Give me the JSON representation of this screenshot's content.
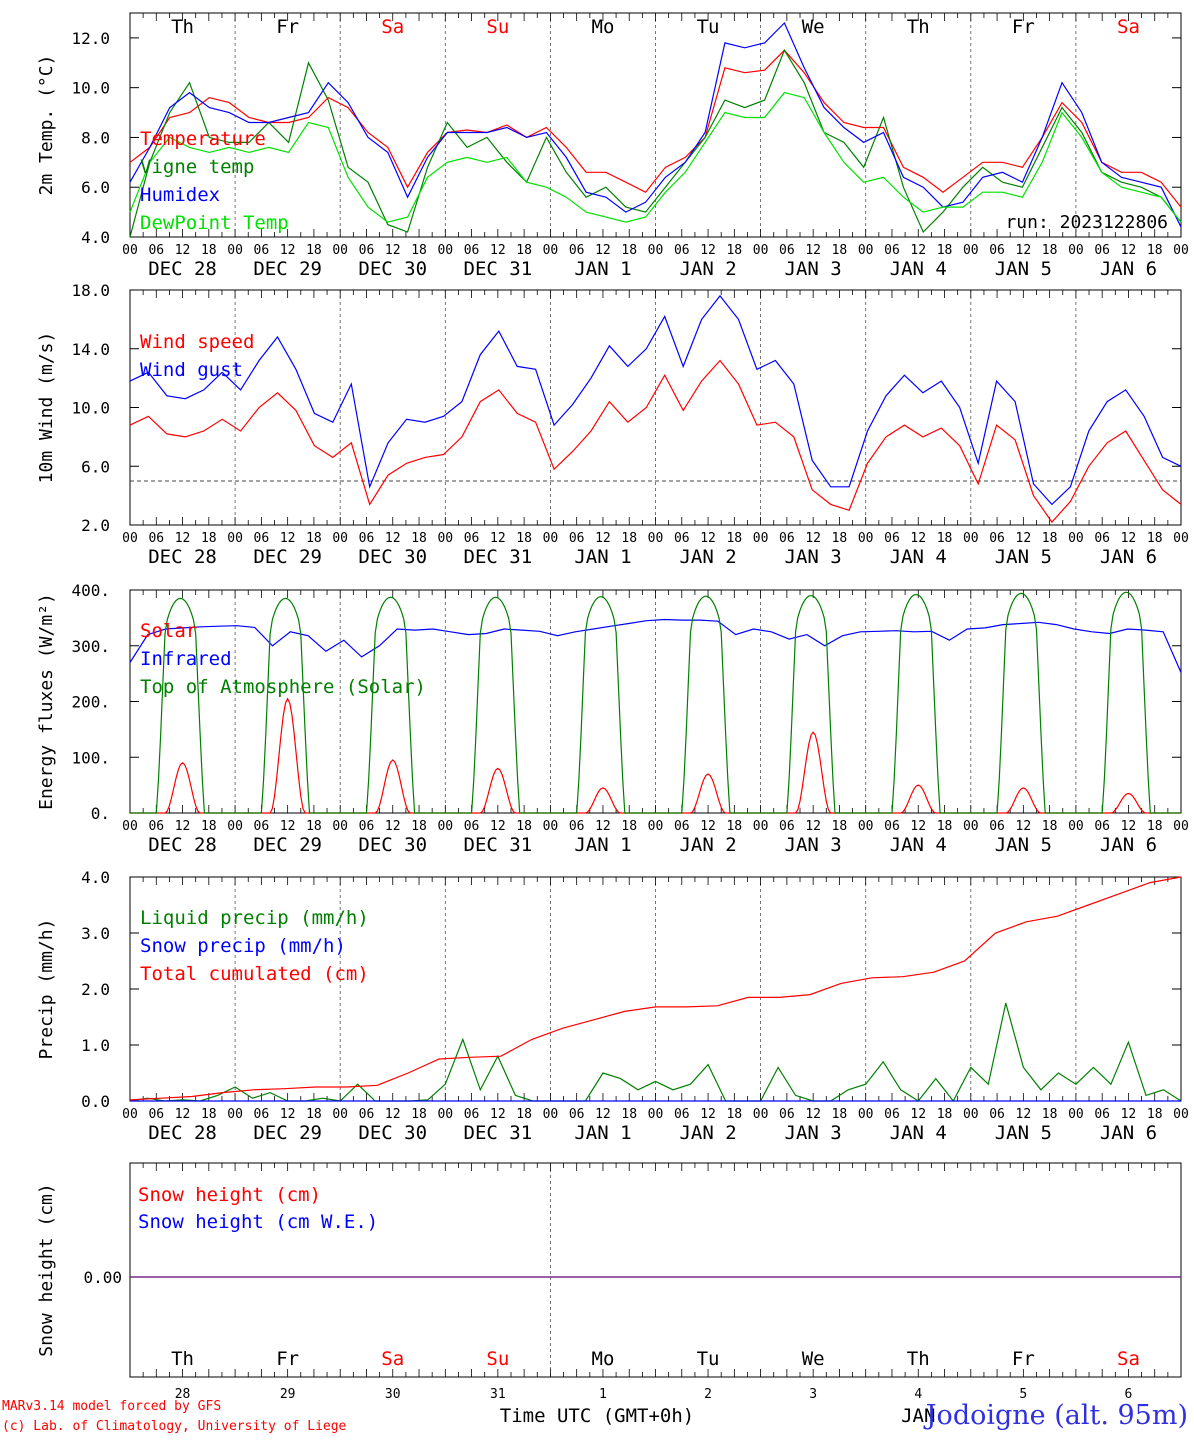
{
  "chart_data": [
    {
      "type": "line",
      "ylabel": "2m Temp. (°C)",
      "ylim": [
        4.0,
        13.0
      ],
      "y_ticks": [
        "4.0",
        "6.0",
        "8.0",
        "10.0",
        "12.0"
      ],
      "run_label": "run: 2023122806",
      "series": [
        {
          "name": "Temperature",
          "color": "#ff0000",
          "values": [
            7.0,
            7.6,
            8.8,
            9.0,
            9.6,
            9.4,
            8.8,
            8.6,
            8.6,
            8.8,
            9.6,
            9.2,
            8.2,
            7.6,
            6.0,
            7.4,
            8.2,
            8.3,
            8.2,
            8.5,
            8.0,
            8.4,
            7.6,
            6.6,
            6.6,
            6.2,
            5.8,
            6.8,
            7.2,
            8.0,
            10.8,
            10.6,
            10.7,
            11.5,
            10.6,
            9.4,
            8.6,
            8.4,
            8.4,
            6.8,
            6.4,
            5.8,
            6.4,
            7.0,
            7.0,
            6.8,
            8.0,
            9.4,
            8.6,
            7.0,
            6.6,
            6.6,
            6.2,
            5.2
          ]
        },
        {
          "name": "Vigne temp",
          "color": "#008000",
          "values": [
            4.0,
            7.0,
            9.0,
            10.2,
            8.0,
            7.8,
            7.8,
            8.6,
            7.8,
            11.0,
            9.5,
            6.8,
            6.2,
            4.5,
            4.2,
            6.8,
            8.6,
            7.6,
            8.0,
            7.0,
            6.2,
            8.0,
            6.6,
            5.6,
            6.0,
            5.2,
            5.0,
            6.0,
            7.0,
            8.0,
            9.5,
            9.2,
            9.5,
            11.5,
            10.2,
            8.2,
            7.8,
            6.8,
            8.8,
            6.0,
            4.2,
            5.0,
            6.0,
            6.8,
            6.2,
            6.0,
            7.6,
            9.2,
            8.2,
            6.6,
            6.2,
            6.0,
            5.6,
            4.6
          ]
        },
        {
          "name": "Humidex",
          "color": "#0000ff",
          "values": [
            6.2,
            7.6,
            9.2,
            9.8,
            9.2,
            9.0,
            8.6,
            8.6,
            8.8,
            9.0,
            10.2,
            9.4,
            8.0,
            7.4,
            5.6,
            7.2,
            8.2,
            8.2,
            8.2,
            8.4,
            8.0,
            8.2,
            7.2,
            5.8,
            5.6,
            5.0,
            5.4,
            6.4,
            7.0,
            8.2,
            11.8,
            11.6,
            11.8,
            12.6,
            10.8,
            9.2,
            8.4,
            7.8,
            8.2,
            6.4,
            6.0,
            5.2,
            5.4,
            6.4,
            6.6,
            6.2,
            8.0,
            10.2,
            9.0,
            7.0,
            6.4,
            6.2,
            6.0,
            4.4
          ]
        },
        {
          "name": "DewPoint Temp",
          "color": "#00e000",
          "values": [
            5.0,
            7.0,
            8.0,
            7.6,
            7.4,
            7.6,
            7.4,
            7.6,
            7.4,
            8.6,
            8.4,
            6.4,
            5.2,
            4.6,
            4.8,
            6.4,
            7.0,
            7.2,
            7.0,
            7.2,
            6.2,
            6.0,
            5.6,
            5.0,
            4.8,
            4.6,
            4.8,
            5.8,
            6.6,
            7.8,
            9.0,
            8.8,
            8.8,
            9.8,
            9.6,
            8.2,
            7.0,
            6.2,
            6.4,
            5.6,
            5.0,
            5.2,
            5.2,
            5.8,
            5.8,
            5.6,
            7.0,
            9.0,
            8.0,
            6.6,
            6.0,
            5.8,
            5.6,
            4.6
          ]
        }
      ]
    },
    {
      "type": "line",
      "ylabel": "10m Wind (m/s)",
      "ylim": [
        2.0,
        18.0
      ],
      "y_ticks": [
        "2.0",
        "6.0",
        "10.0",
        "14.0",
        "18.0"
      ],
      "reference_line": 5.0,
      "series": [
        {
          "name": "Wind speed",
          "color": "#ff0000",
          "values": [
            8.8,
            9.4,
            8.2,
            8.0,
            8.4,
            9.2,
            8.4,
            10.0,
            11.0,
            9.8,
            7.4,
            6.6,
            7.6,
            3.4,
            5.4,
            6.2,
            6.6,
            6.8,
            8.0,
            10.4,
            11.2,
            9.6,
            9.0,
            5.8,
            7.0,
            8.4,
            10.4,
            9.0,
            10.0,
            12.2,
            9.8,
            11.8,
            13.2,
            11.6,
            8.8,
            9.0,
            8.0,
            4.4,
            3.4,
            3.0,
            6.2,
            8.0,
            8.8,
            8.0,
            8.6,
            7.4,
            4.8,
            8.8,
            7.8,
            4.0,
            2.2,
            3.6,
            6.0,
            7.6,
            8.4,
            6.4,
            4.4,
            3.4
          ]
        },
        {
          "name": "Wind gust",
          "color": "#0000ff",
          "values": [
            11.8,
            12.4,
            10.8,
            10.6,
            11.2,
            12.4,
            11.2,
            13.2,
            14.8,
            12.6,
            9.6,
            9.0,
            11.6,
            4.6,
            7.6,
            9.2,
            9.0,
            9.4,
            10.4,
            13.6,
            15.2,
            12.8,
            12.6,
            8.8,
            10.2,
            12.0,
            14.2,
            12.8,
            14.0,
            16.2,
            12.8,
            16.0,
            17.6,
            16.0,
            12.6,
            13.2,
            11.6,
            6.4,
            4.6,
            4.6,
            8.4,
            10.8,
            12.2,
            11.0,
            11.8,
            10.0,
            6.2,
            11.8,
            10.4,
            4.8,
            3.4,
            4.6,
            8.4,
            10.4,
            11.2,
            9.4,
            6.6,
            6.0
          ]
        }
      ]
    },
    {
      "type": "line",
      "ylabel": "Energy fluxes (W/m²)",
      "ylim": [
        0,
        400
      ],
      "y_ticks": [
        "0.",
        "100.",
        "200.",
        "300.",
        "400."
      ],
      "series": [
        {
          "name": "Solar",
          "color": "#ff0000",
          "daily_peaks": [
            90,
            205,
            95,
            80,
            45,
            70,
            145,
            50,
            45,
            35
          ]
        },
        {
          "name": "Infrared",
          "color": "#0000ff",
          "values": [
            270,
            320,
            330,
            332,
            334,
            335,
            336,
            333,
            300,
            325,
            318,
            290,
            310,
            280,
            300,
            330,
            328,
            330,
            325,
            320,
            322,
            330,
            328,
            326,
            318,
            325,
            330,
            335,
            340,
            345,
            347,
            346,
            346,
            344,
            320,
            330,
            325,
            312,
            320,
            300,
            318,
            325,
            326,
            327,
            325,
            326,
            310,
            330,
            332,
            338,
            340,
            342,
            338,
            330,
            325,
            322,
            330,
            328,
            325,
            252
          ]
        },
        {
          "name": "Top of Atmosphere (Solar)",
          "color": "#008000",
          "daily_peaks": [
            385,
            385,
            387,
            387,
            388,
            389,
            390,
            392,
            394,
            396
          ]
        }
      ]
    },
    {
      "type": "line",
      "ylabel": "Precip (mm/h)",
      "ylim": [
        0.0,
        4.0
      ],
      "y_ticks": [
        "0.0",
        "1.0",
        "2.0",
        "3.0",
        "4.0"
      ],
      "series": [
        {
          "name": "Liquid precip (mm/h)",
          "color": "#008000",
          "values": [
            0,
            0.05,
            0,
            0.02,
            0,
            0.1,
            0.25,
            0.05,
            0.15,
            0,
            0,
            0.05,
            0,
            0.3,
            0,
            0,
            0,
            0.02,
            0.3,
            1.1,
            0.2,
            0.8,
            0.1,
            0,
            0,
            0,
            0,
            0.5,
            0.4,
            0.2,
            0.35,
            0.2,
            0.3,
            0.65,
            0,
            0,
            0,
            0.6,
            0.1,
            0,
            0,
            0.2,
            0.3,
            0.7,
            0.2,
            0,
            0.4,
            0,
            0.6,
            0.3,
            1.75,
            0.6,
            0.2,
            0.5,
            0.3,
            0.6,
            0.3,
            1.05,
            0.1,
            0.2,
            0
          ]
        },
        {
          "name": "Snow precip (mm/h)",
          "color": "#0000ff",
          "values": [
            0,
            0
          ]
        },
        {
          "name": "Total cumulated (cm)",
          "color": "#ff0000",
          "values": [
            0.02,
            0.05,
            0.08,
            0.15,
            0.2,
            0.22,
            0.25,
            0.25,
            0.28,
            0.5,
            0.75,
            0.78,
            0.8,
            1.1,
            1.3,
            1.45,
            1.6,
            1.68,
            1.68,
            1.7,
            1.85,
            1.85,
            1.9,
            2.1,
            2.2,
            2.22,
            2.3,
            2.5,
            3.0,
            3.2,
            3.3,
            3.5,
            3.7,
            3.9,
            4.0
          ]
        }
      ]
    },
    {
      "type": "line",
      "ylabel": "Snow height (cm)",
      "y_ticks": [
        "0.00"
      ],
      "series": [
        {
          "name": "Snow height (cm)",
          "color": "#ff0000",
          "values": [
            0,
            0
          ]
        },
        {
          "name": "Snow height (cm W.E.)",
          "color": "#0000ff",
          "values": [
            0,
            0
          ]
        }
      ]
    }
  ],
  "days": [
    {
      "dow": "Th",
      "date": "DEC 28",
      "num": "28",
      "weekend": false
    },
    {
      "dow": "Fr",
      "date": "DEC 29",
      "num": "29",
      "weekend": false
    },
    {
      "dow": "Sa",
      "date": "DEC 30",
      "num": "30",
      "weekend": true
    },
    {
      "dow": "Su",
      "date": "DEC 31",
      "num": "31",
      "weekend": true
    },
    {
      "dow": "Mo",
      "date": "JAN  1",
      "num": "1",
      "weekend": false
    },
    {
      "dow": "Tu",
      "date": "JAN  2",
      "num": "2",
      "weekend": false
    },
    {
      "dow": "We",
      "date": "JAN  3",
      "num": "3",
      "weekend": false
    },
    {
      "dow": "Th",
      "date": "JAN  4",
      "num": "4",
      "weekend": false
    },
    {
      "dow": "Fr",
      "date": "JAN  5",
      "num": "5",
      "weekend": false
    },
    {
      "dow": "Sa",
      "date": "JAN  6",
      "num": "6",
      "weekend": true
    }
  ],
  "hour_labels": [
    "00",
    "06",
    "12",
    "18"
  ],
  "month_label": "JAN",
  "footer": {
    "model": "MARv3.14 model forced by GFS",
    "credit": "(c) Lab. of Climatology, University of Liege",
    "xlabel": "Time UTC (GMT+0h)",
    "station": "Jodoigne (alt. 95m)"
  }
}
